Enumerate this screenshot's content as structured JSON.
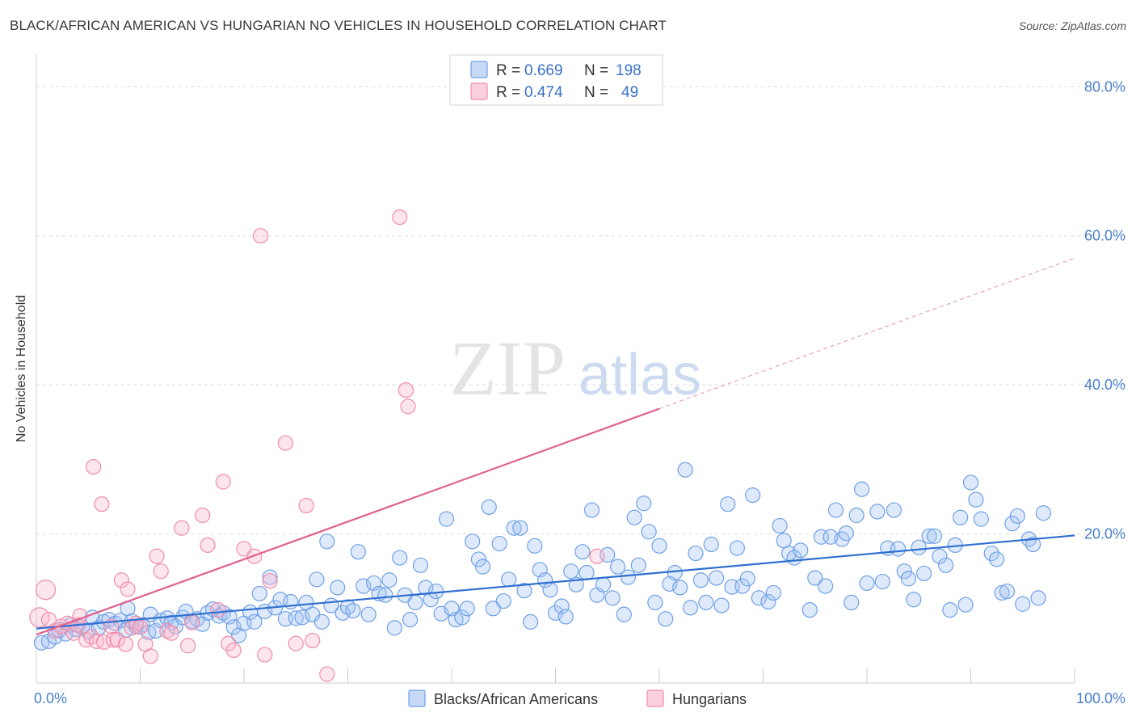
{
  "header": {
    "title": "BLACK/AFRICAN AMERICAN VS HUNGARIAN NO VEHICLES IN HOUSEHOLD CORRELATION CHART",
    "source": "Source: ZipAtlas.com"
  },
  "watermark": {
    "part1": "ZIP",
    "part2": "atlas"
  },
  "legend": {
    "r_label": "R =",
    "n_label": "N =",
    "series": [
      {
        "r": "0.669",
        "n": "198",
        "color": "#6fa0e6"
      },
      {
        "r": "0.474",
        "n": "49",
        "color": "#f08cab"
      }
    ]
  },
  "chart_data": {
    "type": "scatter",
    "title": "BLACK/AFRICAN AMERICAN VS HUNGARIAN NO VEHICLES IN HOUSEHOLD CORRELATION CHART",
    "xlabel": "",
    "ylabel": "No Vehicles in Household",
    "xlim": [
      0,
      100
    ],
    "ylim": [
      0,
      80
    ],
    "x_tick_labels": [
      "0.0%",
      "100.0%"
    ],
    "y_tick_labels": [
      "20.0%",
      "40.0%",
      "60.0%",
      "80.0%"
    ],
    "y_ticks": [
      20,
      40,
      60,
      80
    ],
    "grid": true,
    "legend_position": "bottom-center",
    "series": [
      {
        "name": "Blacks/African Americans",
        "color": "#6fa0e6",
        "trend": {
          "x": [
            0,
            100
          ],
          "y": [
            7.3,
            19.8
          ]
        },
        "points": [
          [
            0.5,
            5.4
          ],
          [
            1.2,
            5.6
          ],
          [
            1.8,
            6.2
          ],
          [
            2.2,
            7.1
          ],
          [
            2.8,
            6.6
          ],
          [
            3.3,
            7.8
          ],
          [
            3.8,
            7.2
          ],
          [
            4.4,
            7.5
          ],
          [
            5.0,
            6.9
          ],
          [
            5.4,
            8.8
          ],
          [
            6.0,
            7.4
          ],
          [
            6.5,
            8.2
          ],
          [
            7.0,
            8.5
          ],
          [
            7.6,
            8.0
          ],
          [
            8.1,
            8.4
          ],
          [
            8.6,
            7.1
          ],
          [
            8.8,
            10.0
          ],
          [
            9.2,
            8.3
          ],
          [
            9.6,
            7.6
          ],
          [
            10.2,
            7.8
          ],
          [
            10.8,
            6.8
          ],
          [
            11.0,
            9.2
          ],
          [
            11.5,
            7.0
          ],
          [
            12.0,
            8.4
          ],
          [
            12.6,
            8.7
          ],
          [
            13.0,
            8.1
          ],
          [
            13.4,
            7.6
          ],
          [
            14.1,
            8.8
          ],
          [
            14.4,
            9.6
          ],
          [
            15.0,
            8.3
          ],
          [
            15.5,
            8.6
          ],
          [
            16.0,
            7.9
          ],
          [
            16.5,
            9.4
          ],
          [
            17.0,
            9.9
          ],
          [
            17.6,
            9.0
          ],
          [
            18.0,
            9.4
          ],
          [
            18.6,
            8.9
          ],
          [
            19.0,
            7.5
          ],
          [
            19.5,
            6.4
          ],
          [
            20.0,
            8.0
          ],
          [
            20.6,
            9.5
          ],
          [
            21.0,
            8.2
          ],
          [
            21.5,
            12.0
          ],
          [
            22.0,
            9.6
          ],
          [
            22.5,
            14.2
          ],
          [
            23.0,
            10.1
          ],
          [
            23.5,
            11.2
          ],
          [
            24.0,
            8.6
          ],
          [
            24.5,
            10.9
          ],
          [
            25.0,
            8.7
          ],
          [
            25.6,
            8.8
          ],
          [
            26.0,
            10.8
          ],
          [
            26.6,
            9.2
          ],
          [
            27.0,
            13.9
          ],
          [
            27.5,
            8.2
          ],
          [
            28.0,
            19.0
          ],
          [
            28.4,
            10.4
          ],
          [
            29.0,
            12.8
          ],
          [
            29.5,
            9.4
          ],
          [
            30.0,
            10.2
          ],
          [
            30.5,
            9.7
          ],
          [
            31.0,
            17.6
          ],
          [
            31.5,
            13.0
          ],
          [
            32.0,
            9.2
          ],
          [
            32.5,
            13.4
          ],
          [
            33.0,
            12.0
          ],
          [
            33.6,
            11.8
          ],
          [
            34.0,
            13.8
          ],
          [
            34.5,
            7.4
          ],
          [
            35.0,
            16.8
          ],
          [
            35.5,
            11.8
          ],
          [
            36.0,
            8.5
          ],
          [
            36.5,
            10.8
          ],
          [
            37.0,
            15.8
          ],
          [
            37.5,
            12.8
          ],
          [
            38.0,
            11.2
          ],
          [
            38.5,
            12.3
          ],
          [
            39.0,
            9.3
          ],
          [
            39.5,
            22.0
          ],
          [
            40.0,
            10.0
          ],
          [
            40.4,
            8.5
          ],
          [
            41.0,
            8.8
          ],
          [
            41.5,
            10.0
          ],
          [
            42.0,
            19.0
          ],
          [
            42.6,
            16.6
          ],
          [
            43.0,
            15.6
          ],
          [
            43.6,
            23.6
          ],
          [
            44.0,
            10.0
          ],
          [
            44.6,
            18.7
          ],
          [
            45.0,
            11.0
          ],
          [
            45.5,
            13.9
          ],
          [
            46.0,
            20.8
          ],
          [
            46.6,
            20.8
          ],
          [
            47.0,
            12.4
          ],
          [
            47.6,
            8.2
          ],
          [
            48.0,
            18.4
          ],
          [
            48.5,
            15.2
          ],
          [
            49.0,
            13.8
          ],
          [
            49.5,
            12.5
          ],
          [
            50.0,
            9.4
          ],
          [
            50.6,
            10.3
          ],
          [
            51.0,
            8.9
          ],
          [
            51.5,
            15.0
          ],
          [
            52.0,
            13.2
          ],
          [
            52.6,
            17.6
          ],
          [
            53.0,
            14.8
          ],
          [
            53.5,
            23.2
          ],
          [
            54.0,
            11.8
          ],
          [
            54.6,
            13.2
          ],
          [
            55.0,
            17.2
          ],
          [
            55.5,
            11.4
          ],
          [
            56.0,
            15.6
          ],
          [
            56.6,
            9.2
          ],
          [
            57.0,
            14.2
          ],
          [
            57.6,
            22.2
          ],
          [
            58.0,
            15.8
          ],
          [
            58.5,
            24.1
          ],
          [
            59.0,
            20.3
          ],
          [
            59.6,
            10.8
          ],
          [
            60.0,
            18.4
          ],
          [
            60.6,
            8.6
          ],
          [
            61.0,
            13.3
          ],
          [
            61.5,
            14.8
          ],
          [
            62.0,
            12.8
          ],
          [
            62.5,
            28.6
          ],
          [
            63.0,
            10.1
          ],
          [
            63.5,
            17.4
          ],
          [
            64.0,
            13.8
          ],
          [
            64.5,
            10.8
          ],
          [
            65.0,
            18.6
          ],
          [
            65.5,
            14.1
          ],
          [
            66.0,
            10.4
          ],
          [
            66.6,
            24.0
          ],
          [
            67.0,
            12.9
          ],
          [
            67.5,
            18.1
          ],
          [
            68.0,
            13.0
          ],
          [
            68.5,
            14.0
          ],
          [
            69.0,
            25.2
          ],
          [
            69.6,
            11.4
          ],
          [
            70.5,
            10.9
          ],
          [
            71.0,
            12.1
          ],
          [
            71.6,
            21.1
          ],
          [
            72.0,
            19.1
          ],
          [
            72.5,
            17.4
          ],
          [
            73.0,
            16.8
          ],
          [
            73.6,
            17.8
          ],
          [
            74.5,
            9.8
          ],
          [
            75.0,
            14.1
          ],
          [
            75.6,
            19.6
          ],
          [
            76.0,
            13.0
          ],
          [
            76.5,
            19.6
          ],
          [
            77.0,
            23.2
          ],
          [
            77.6,
            19.3
          ],
          [
            78.0,
            20.1
          ],
          [
            78.5,
            10.8
          ],
          [
            79.0,
            22.5
          ],
          [
            79.5,
            26.0
          ],
          [
            80.0,
            13.4
          ],
          [
            81.0,
            23.0
          ],
          [
            81.5,
            13.6
          ],
          [
            82.0,
            18.1
          ],
          [
            82.6,
            23.2
          ],
          [
            83.0,
            18.0
          ],
          [
            83.6,
            15.0
          ],
          [
            84.0,
            14.0
          ],
          [
            84.5,
            11.2
          ],
          [
            85.0,
            18.2
          ],
          [
            85.5,
            14.7
          ],
          [
            86.0,
            19.7
          ],
          [
            86.5,
            19.7
          ],
          [
            87.0,
            17.0
          ],
          [
            87.6,
            15.8
          ],
          [
            88.0,
            9.8
          ],
          [
            88.5,
            18.5
          ],
          [
            89.0,
            22.2
          ],
          [
            89.5,
            10.5
          ],
          [
            90.0,
            26.9
          ],
          [
            90.5,
            24.6
          ],
          [
            91.0,
            22.0
          ],
          [
            92.0,
            17.4
          ],
          [
            92.5,
            16.6
          ],
          [
            93.0,
            12.1
          ],
          [
            93.5,
            12.3
          ],
          [
            94.0,
            21.4
          ],
          [
            94.5,
            22.4
          ],
          [
            95.0,
            10.6
          ],
          [
            95.6,
            19.3
          ],
          [
            96.0,
            18.6
          ],
          [
            96.5,
            11.4
          ],
          [
            97.0,
            22.8
          ]
        ]
      },
      {
        "name": "Hungarians",
        "color": "#f08cab",
        "trend": {
          "x": [
            0,
            60
          ],
          "y": [
            6.5,
            36.8
          ]
        },
        "trend_extension": {
          "x": [
            60,
            100
          ],
          "y": [
            36.8,
            57.0
          ]
        },
        "points": [
          [
            0.3,
            8.8
          ],
          [
            0.9,
            12.5
          ],
          [
            1.2,
            8.5
          ],
          [
            1.8,
            7.0
          ],
          [
            2.4,
            7.6
          ],
          [
            3.0,
            8.0
          ],
          [
            3.6,
            6.7
          ],
          [
            4.0,
            7.8
          ],
          [
            4.2,
            9.0
          ],
          [
            4.8,
            5.8
          ],
          [
            5.3,
            6.2
          ],
          [
            5.5,
            29.0
          ],
          [
            5.8,
            5.6
          ],
          [
            6.3,
            24.0
          ],
          [
            6.5,
            5.5
          ],
          [
            7.2,
            7.6
          ],
          [
            7.4,
            5.8
          ],
          [
            7.8,
            5.8
          ],
          [
            8.2,
            13.8
          ],
          [
            8.6,
            5.2
          ],
          [
            8.8,
            12.6
          ],
          [
            9.2,
            7.4
          ],
          [
            9.6,
            8.0
          ],
          [
            10.0,
            7.5
          ],
          [
            10.5,
            5.2
          ],
          [
            11.0,
            3.6
          ],
          [
            11.6,
            17.0
          ],
          [
            12.0,
            15.0
          ],
          [
            12.6,
            7.0
          ],
          [
            13.0,
            6.7
          ],
          [
            14.0,
            20.8
          ],
          [
            14.6,
            5.0
          ],
          [
            15.0,
            8.1
          ],
          [
            16.0,
            22.5
          ],
          [
            16.5,
            18.5
          ],
          [
            17.5,
            9.8
          ],
          [
            18.0,
            27.0
          ],
          [
            18.5,
            5.3
          ],
          [
            19.0,
            4.4
          ],
          [
            20.0,
            18.0
          ],
          [
            21.0,
            17.0
          ],
          [
            21.6,
            60.0
          ],
          [
            22.0,
            3.8
          ],
          [
            22.5,
            13.7
          ],
          [
            24.0,
            32.2
          ],
          [
            25.0,
            5.3
          ],
          [
            26.0,
            23.8
          ],
          [
            26.6,
            5.7
          ],
          [
            28.0,
            1.2
          ],
          [
            35.0,
            62.5
          ],
          [
            35.6,
            39.3
          ],
          [
            35.8,
            37.1
          ],
          [
            54.0,
            17.0
          ]
        ]
      }
    ]
  },
  "bottom_legend": {
    "items": [
      {
        "label": "Blacks/African Americans",
        "color": "#6fa0e6"
      },
      {
        "label": "Hungarians",
        "color": "#f08cab"
      }
    ]
  }
}
